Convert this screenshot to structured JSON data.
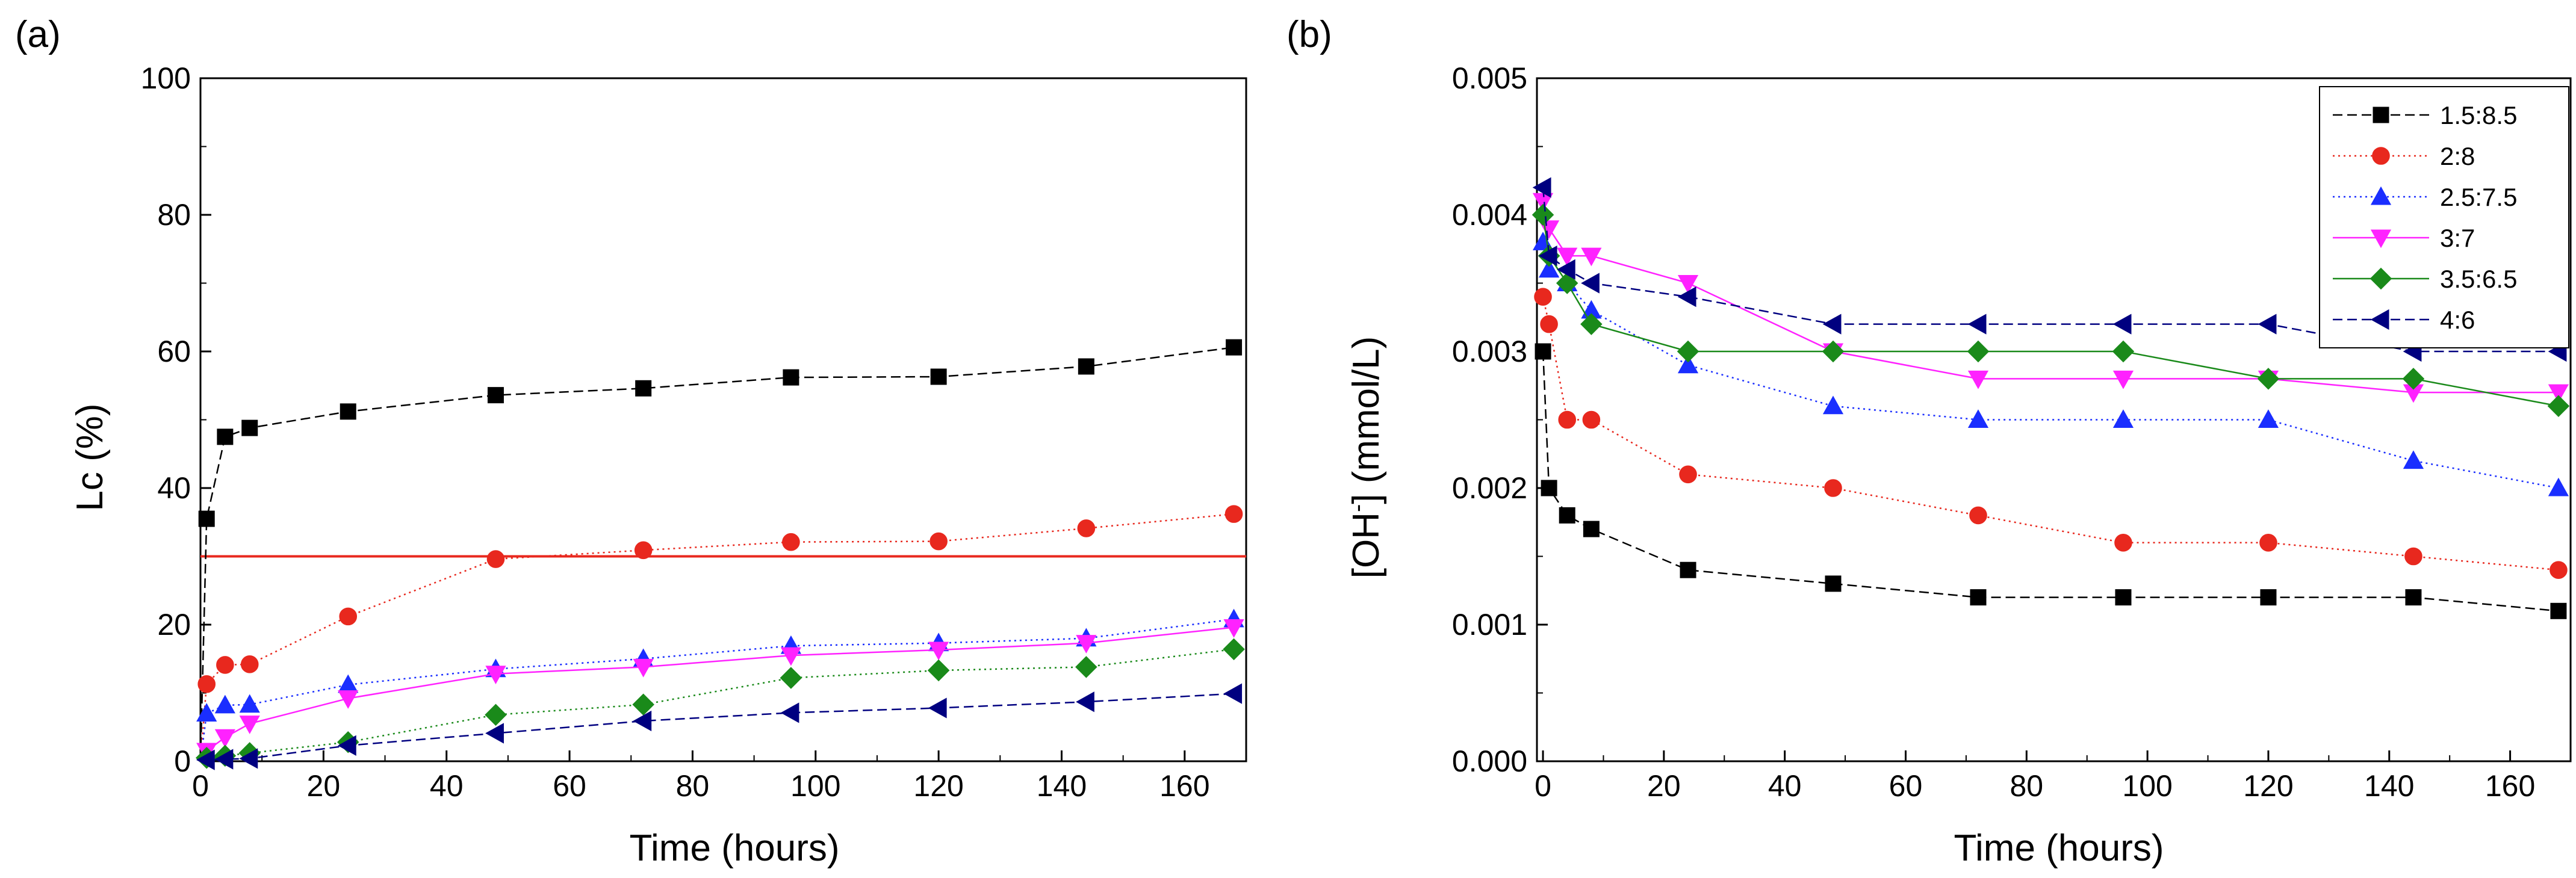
{
  "chart_data": [
    {
      "type": "line",
      "panel_label": "(a)",
      "title": "",
      "xlabel": "Time (hours)",
      "ylabel": "Lc (%)",
      "xlim": [
        0,
        170
      ],
      "ylim": [
        0,
        100
      ],
      "xticks": [
        "0",
        "20",
        "40",
        "60",
        "80",
        "100",
        "120",
        "140",
        "160"
      ],
      "yticks": [
        "0",
        "20",
        "40",
        "60",
        "80",
        "100"
      ],
      "grid": false,
      "legend": "none",
      "reference_line": {
        "y": 30,
        "color": "#e8281e"
      },
      "series": [
        {
          "name": "1.5:8.5",
          "marker": "square",
          "color": "#000000",
          "line_dash": "dash",
          "x": [
            0,
            1,
            4,
            8,
            24,
            48,
            72,
            96,
            120,
            144,
            168
          ],
          "y": [
            0,
            35.5,
            47.5,
            48.8,
            51.2,
            53.6,
            54.6,
            56.2,
            56.3,
            57.8,
            60.6
          ]
        },
        {
          "name": "2:8",
          "marker": "circle",
          "color": "#e8281e",
          "line_dash": "dot",
          "x": [
            0,
            1,
            4,
            8,
            24,
            48,
            72,
            96,
            120,
            144,
            168
          ],
          "y": [
            0,
            11.3,
            14.1,
            14.2,
            21.2,
            29.6,
            30.9,
            32.1,
            32.2,
            34.1,
            36.2
          ]
        },
        {
          "name": "2.5:7.5",
          "marker": "triangle-up",
          "color": "#1a2eff",
          "line_dash": "dot",
          "x": [
            0,
            1,
            4,
            8,
            24,
            48,
            72,
            96,
            120,
            144,
            168
          ],
          "y": [
            0,
            7,
            8.2,
            8.3,
            11.2,
            13.5,
            15,
            16.9,
            17.3,
            18,
            20.8
          ]
        },
        {
          "name": "3:7",
          "marker": "triangle-down",
          "color": "#ff22ff",
          "line_dash": "solid",
          "x": [
            0,
            1,
            4,
            8,
            24,
            48,
            72,
            96,
            120,
            144,
            168
          ],
          "y": [
            0,
            1.5,
            3.5,
            5.5,
            9.2,
            12.8,
            13.8,
            15.5,
            16.3,
            17.3,
            19.6
          ]
        },
        {
          "name": "3.5:6.5",
          "marker": "diamond",
          "color": "#1a8a1a",
          "line_dash": "dot",
          "x": [
            0,
            1,
            4,
            8,
            24,
            48,
            72,
            96,
            120,
            144,
            168
          ],
          "y": [
            0,
            0.5,
            0.8,
            1.2,
            2.8,
            6.8,
            8.3,
            12.2,
            13.3,
            13.8,
            16.4
          ]
        },
        {
          "name": "4:6",
          "marker": "triangle-left",
          "color": "#000080",
          "line_dash": "dash",
          "x": [
            0,
            1,
            4,
            8,
            24,
            48,
            72,
            96,
            120,
            144,
            168
          ],
          "y": [
            0,
            0.2,
            0.3,
            0.4,
            2.3,
            4.1,
            5.9,
            7.1,
            7.8,
            8.7,
            9.9
          ]
        }
      ]
    },
    {
      "type": "line",
      "panel_label": "(b)",
      "title": "",
      "xlabel": "Time (hours)",
      "ylabel_parts": [
        "[OH",
        "-",
        "] (mmol/L)"
      ],
      "xlim": [
        -1,
        170
      ],
      "ylim": [
        0,
        0.005
      ],
      "xticks": [
        "0",
        "20",
        "40",
        "60",
        "80",
        "100",
        "120",
        "140",
        "160"
      ],
      "yticks": [
        "0.000",
        "0.001",
        "0.002",
        "0.003",
        "0.004",
        "0.005"
      ],
      "grid": false,
      "legend": "top-right",
      "series": [
        {
          "name": "1.5:8.5",
          "marker": "square",
          "color": "#000000",
          "line_dash": "dash",
          "x": [
            0,
            1,
            4,
            8,
            24,
            48,
            72,
            96,
            120,
            144,
            168
          ],
          "y": [
            0.003,
            0.002,
            0.0018,
            0.0017,
            0.0014,
            0.0013,
            0.0012,
            0.0012,
            0.0012,
            0.0012,
            0.0011
          ]
        },
        {
          "name": "2:8",
          "marker": "circle",
          "color": "#e8281e",
          "line_dash": "dot",
          "x": [
            0,
            1,
            4,
            8,
            24,
            48,
            72,
            96,
            120,
            144,
            168
          ],
          "y": [
            0.0034,
            0.0032,
            0.0025,
            0.0025,
            0.0021,
            0.002,
            0.0018,
            0.0016,
            0.0016,
            0.0015,
            0.0014
          ]
        },
        {
          "name": "2.5:7.5",
          "marker": "triangle-up",
          "color": "#1a2eff",
          "line_dash": "dot",
          "x": [
            0,
            1,
            4,
            8,
            24,
            48,
            72,
            96,
            120,
            144,
            168
          ],
          "y": [
            0.0038,
            0.0036,
            0.0035,
            0.0033,
            0.0029,
            0.0026,
            0.0025,
            0.0025,
            0.0025,
            0.0022,
            0.002
          ]
        },
        {
          "name": "3:7",
          "marker": "triangle-down",
          "color": "#ff22ff",
          "line_dash": "solid",
          "x": [
            0,
            1,
            4,
            8,
            24,
            48,
            72,
            96,
            120,
            144,
            168
          ],
          "y": [
            0.0041,
            0.0039,
            0.0037,
            0.0037,
            0.0035,
            0.003,
            0.0028,
            0.0028,
            0.0028,
            0.0027,
            0.0027
          ]
        },
        {
          "name": "3.5:6.5",
          "marker": "diamond",
          "color": "#1a8a1a",
          "line_dash": "solid",
          "x": [
            0,
            1,
            4,
            8,
            24,
            48,
            72,
            96,
            120,
            144,
            168
          ],
          "y": [
            0.004,
            0.0037,
            0.0035,
            0.0032,
            0.003,
            0.003,
            0.003,
            0.003,
            0.0028,
            0.0028,
            0.0026
          ]
        },
        {
          "name": "4:6",
          "marker": "triangle-left",
          "color": "#000080",
          "line_dash": "dash",
          "x": [
            0,
            1,
            4,
            8,
            24,
            48,
            72,
            96,
            120,
            144,
            168
          ],
          "y": [
            0.0042,
            0.0037,
            0.0036,
            0.0035,
            0.0034,
            0.0032,
            0.0032,
            0.0032,
            0.0032,
            0.003,
            0.003
          ]
        }
      ]
    }
  ]
}
